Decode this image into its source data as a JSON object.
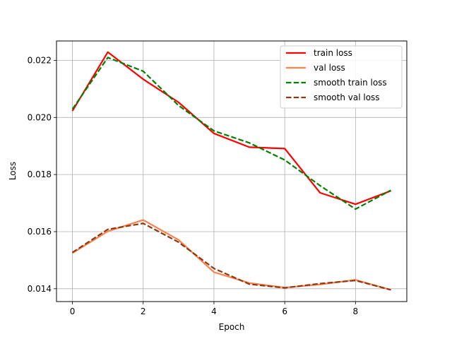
{
  "chart_data": {
    "type": "line",
    "xlabel": "Epoch",
    "ylabel": "Loss",
    "x": [
      0,
      1,
      2,
      3,
      4,
      5,
      6,
      7,
      8,
      9
    ],
    "xlim": [
      -0.45,
      9.45
    ],
    "ylim": [
      0.01355,
      0.02268
    ],
    "xticks": [
      0,
      2,
      4,
      6,
      8
    ],
    "xtick_labels": [
      "0",
      "2",
      "4",
      "6",
      "8"
    ],
    "yticks": [
      0.014,
      0.016,
      0.018,
      0.02,
      0.022
    ],
    "ytick_labels": [
      "0.014",
      "0.016",
      "0.018",
      "0.020",
      "0.022"
    ],
    "grid": true,
    "legend_position": "top-right",
    "series": [
      {
        "name": "train loss",
        "color": "#ff0000",
        "dash": "solid",
        "values": [
          0.02023,
          0.02229,
          0.02134,
          0.02053,
          0.01944,
          0.01896,
          0.01891,
          0.01736,
          0.01696,
          0.01743
        ]
      },
      {
        "name": "val loss",
        "color": "#ff7f50",
        "dash": "solid",
        "values": [
          0.01525,
          0.01601,
          0.01641,
          0.01571,
          0.01458,
          0.0142,
          0.01404,
          0.01415,
          0.01431,
          0.01396
        ]
      },
      {
        "name": "smooth train loss",
        "color": "#008000",
        "dash": "dashed",
        "values": [
          0.02029,
          0.0221,
          0.02162,
          0.02042,
          0.01953,
          0.01911,
          0.01851,
          0.01761,
          0.01679,
          0.01745
        ]
      },
      {
        "name": "smooth val loss",
        "color": "#8b3a0f",
        "dash": "dashed",
        "values": [
          0.01527,
          0.01608,
          0.01629,
          0.01563,
          0.01471,
          0.01416,
          0.01403,
          0.01418,
          0.01429,
          0.01396
        ]
      }
    ]
  }
}
